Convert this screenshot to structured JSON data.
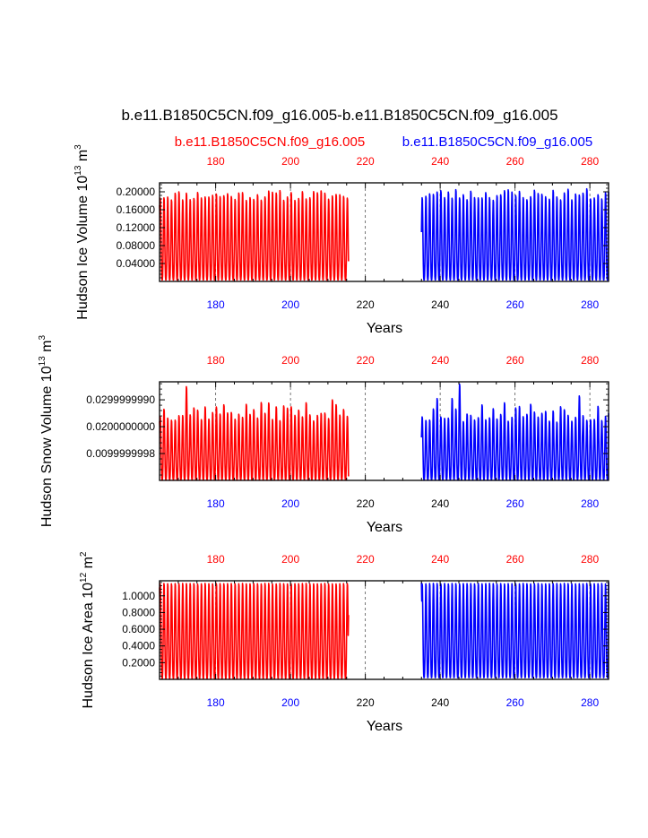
{
  "figure": {
    "title": "b.e11.B1850C5CN.f09_g16.005-b.e11.B1850C5CN.f09_g16.005",
    "legend_left": "b.e11.B1850C5CN.f09_g16.005",
    "legend_right": "b.e11.B1850C5CN.f09_g16.005",
    "colors": {
      "left_series": "#ff0000",
      "right_series": "#0000ff",
      "axis": "#000000",
      "grid": "#555555"
    }
  },
  "chart_data": [
    {
      "type": "line",
      "id": "ice-volume",
      "title": "",
      "xlabel": "Years",
      "ylabel_main": "Hudson Ice Volume 10",
      "ylabel_exp": "13",
      "ylabel_unit": " m",
      "ylabel_unit_exp": "3",
      "xlim": [
        165,
        285
      ],
      "ylim": [
        0.0,
        0.22
      ],
      "yticks": [
        0.04,
        0.08,
        0.12,
        0.16,
        0.2
      ],
      "ytick_labels": [
        "0.04000",
        "0.08000",
        "0.12000",
        "0.16000",
        "0.20000"
      ],
      "xticks_top": [
        180,
        200,
        220,
        240,
        260,
        280
      ],
      "xtick_top_labels": [
        "180",
        "200",
        "220",
        "240",
        "260",
        "280"
      ],
      "xticks_bottom": [
        180,
        200,
        220,
        240,
        260,
        280
      ],
      "xtick_bottom_labels": [
        "180",
        "200",
        "220",
        "240",
        "260",
        "280"
      ],
      "top_label_colors": [
        "red",
        "red",
        "red",
        "red",
        "red",
        "red"
      ],
      "bottom_label_colors": [
        "blue",
        "blue",
        "black",
        "black",
        "blue",
        "blue"
      ],
      "gridlines_x": [
        180,
        200,
        220,
        240,
        260,
        280
      ],
      "series": [
        {
          "name": "b.e11.B1850C5CN.f09_g16.005 (red)",
          "color": "red",
          "years": [
            165,
            215.5
          ],
          "min": 0.003,
          "max_mean": 0.195,
          "max_jitter": 0.012,
          "seed": 11,
          "end_value": 0.045,
          "start_value": 0.17
        },
        {
          "name": "b.e11.B1850C5CN.f09_g16.005 (blue)",
          "color": "blue",
          "years": [
            235,
            285
          ],
          "min": 0.003,
          "max_mean": 0.197,
          "max_jitter": 0.014,
          "seed": 23,
          "start_value": 0.11,
          "end_value": 0.2
        }
      ]
    },
    {
      "type": "line",
      "id": "snow-volume",
      "title": "",
      "xlabel": "Years",
      "ylabel_main": "Hudson Snow Volume 10",
      "ylabel_exp": "13",
      "ylabel_unit": " m",
      "ylabel_unit_exp": "3",
      "xlim": [
        165,
        285
      ],
      "ylim": [
        0.0,
        0.0367
      ],
      "yticks": [
        0.0099999998,
        0.02,
        0.029999999
      ],
      "ytick_labels": [
        "0.0099999998",
        "0.0200000000",
        "0.0299999990"
      ],
      "xticks_top": [
        180,
        200,
        220,
        240,
        260,
        280
      ],
      "xtick_top_labels": [
        "180",
        "200",
        "220",
        "240",
        "260",
        "280"
      ],
      "xticks_bottom": [
        180,
        200,
        220,
        240,
        260,
        280
      ],
      "xtick_bottom_labels": [
        "180",
        "200",
        "220",
        "240",
        "260",
        "280"
      ],
      "top_label_colors": [
        "red",
        "red",
        "red",
        "red",
        "red",
        "red"
      ],
      "bottom_label_colors": [
        "blue",
        "blue",
        "black",
        "black",
        "blue",
        "blue"
      ],
      "gridlines_x": [
        180,
        200,
        220,
        240,
        260,
        280
      ],
      "series": [
        {
          "name": "b.e11.B1850C5CN.f09_g16.005 (red)",
          "color": "red",
          "years": [
            165,
            215.5
          ],
          "min": 0.0002,
          "max_mean": 0.026,
          "max_jitter": 0.0035,
          "seed": 37,
          "end_value": 0.0015,
          "start_value": 0.022,
          "peaks": {
            "172.5": 0.0355,
            "211.8": 0.0305
          }
        },
        {
          "name": "b.e11.B1850C5CN.f09_g16.005 (blue)",
          "color": "blue",
          "years": [
            235,
            285
          ],
          "min": 0.0002,
          "max_mean": 0.026,
          "max_jitter": 0.004,
          "seed": 53,
          "start_value": 0.016,
          "end_value": 0.025,
          "peaks": {
            "245.5": 0.0365,
            "239.8": 0.031,
            "243.5": 0.031,
            "277.5": 0.032
          }
        }
      ]
    },
    {
      "type": "line",
      "id": "ice-area",
      "title": "",
      "xlabel": "Years",
      "ylabel_main": "Hudson Ice Area 10",
      "ylabel_exp": "12",
      "ylabel_unit": " m",
      "ylabel_unit_exp": "2",
      "xlim": [
        165,
        285
      ],
      "ylim": [
        0.0,
        1.18
      ],
      "yticks": [
        0.2,
        0.4,
        0.6,
        0.8,
        1.0
      ],
      "ytick_labels": [
        "0.2000",
        "0.4000",
        "0.6000",
        "0.8000",
        "1.0000"
      ],
      "xticks_top": [
        180,
        200,
        220,
        240,
        260,
        280
      ],
      "xtick_top_labels": [
        "180",
        "200",
        "220",
        "240",
        "260",
        "280"
      ],
      "xticks_bottom": [
        180,
        200,
        220,
        240,
        260,
        280
      ],
      "xtick_bottom_labels": [
        "180",
        "200",
        "220",
        "240",
        "260",
        "280"
      ],
      "top_label_colors": [
        "red",
        "red",
        "red",
        "red",
        "red",
        "red"
      ],
      "bottom_label_colors": [
        "blue",
        "blue",
        "black",
        "black",
        "blue",
        "blue"
      ],
      "gridlines_x": [
        180,
        200,
        220,
        240,
        260,
        280
      ],
      "series": [
        {
          "name": "b.e11.B1850C5CN.f09_g16.005 (red)",
          "color": "red",
          "years": [
            165,
            215.5
          ],
          "min": 0.01,
          "max_mean": 1.165,
          "max_jitter": 0.004,
          "seed": 71,
          "end_value": 0.77,
          "start_value": 1.1
        },
        {
          "name": "b.e11.B1850C5CN.f09_g16.005 (blue)",
          "color": "blue",
          "years": [
            235,
            285
          ],
          "min": 0.02,
          "max_mean": 1.165,
          "max_jitter": 0.004,
          "seed": 89,
          "start_value": 1.16,
          "end_value": 1.16
        }
      ]
    }
  ]
}
